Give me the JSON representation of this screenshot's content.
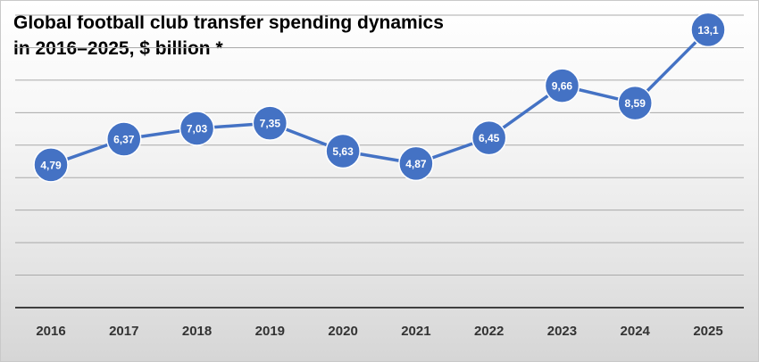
{
  "chart_data": {
    "type": "line",
    "title_lines": [
      "Global football club transfer spending dynamics",
      "in 2016–2025, $ billion *"
    ],
    "xlabel": "",
    "ylabel": "",
    "categories": [
      "2016",
      "2017",
      "2018",
      "2019",
      "2020",
      "2021",
      "2022",
      "2023",
      "2024",
      "2025"
    ],
    "series": [
      {
        "name": "Transfer spending",
        "values": [
          4.79,
          6.37,
          7.03,
          7.35,
          5.63,
          4.87,
          6.45,
          9.66,
          8.59,
          13.1
        ],
        "labels": [
          "4,79",
          "6,37",
          "7,03",
          "7,35",
          "5,63",
          "4,87",
          "6,45",
          "9,66",
          "8,59",
          "13,1"
        ]
      }
    ],
    "ylim": [
      -4,
      14
    ],
    "gridlines": [
      -2,
      0,
      2,
      4,
      6,
      8,
      10,
      12,
      14
    ],
    "grid": true,
    "legend": "none",
    "colors": {
      "series": "#4472c4",
      "grid": "#a9a9a9",
      "axis": "#3f3f3f",
      "label_text": "#ffffff"
    }
  }
}
